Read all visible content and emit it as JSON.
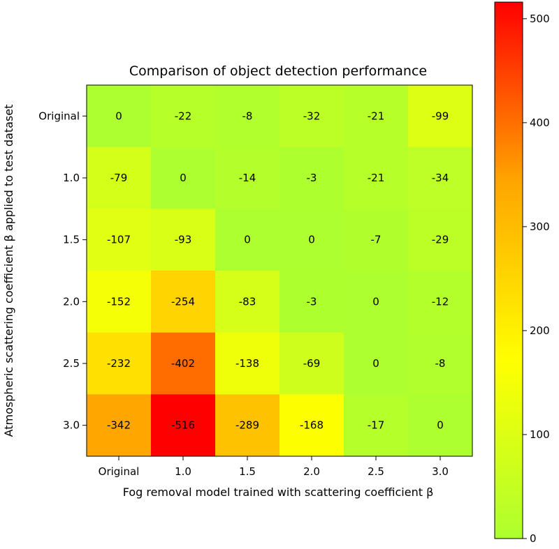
{
  "chart_data": {
    "type": "heatmap",
    "title": "Comparison of object detection performance",
    "xlabel": "Fog removal model trained with scattering coefficient β",
    "ylabel": "Atmospheric scattering coefficient β applied to test dataset",
    "x_categories": [
      "Original",
      "1.0",
      "1.5",
      "2.0",
      "2.5",
      "3.0"
    ],
    "y_categories": [
      "Original",
      "1.0",
      "1.5",
      "2.0",
      "2.5",
      "3.0"
    ],
    "values": [
      [
        0,
        -22,
        -8,
        -32,
        -21,
        -99
      ],
      [
        -79,
        0,
        -14,
        -3,
        -21,
        -34
      ],
      [
        -107,
        -93,
        0,
        0,
        -7,
        -29
      ],
      [
        -152,
        -254,
        -83,
        -3,
        0,
        -12
      ],
      [
        -232,
        -402,
        -138,
        -69,
        0,
        -8
      ],
      [
        -342,
        -516,
        -289,
        -168,
        -17,
        0
      ]
    ],
    "colorbar": {
      "range": [
        0,
        516
      ],
      "ticks": [
        0,
        100,
        200,
        300,
        400,
        500
      ],
      "tick_labels": [
        "0",
        "100",
        "200",
        "300",
        "400",
        "500"
      ],
      "colormap": [
        "#adff2f",
        "#ffff00",
        "#ffa500",
        "#ff0000"
      ]
    }
  }
}
